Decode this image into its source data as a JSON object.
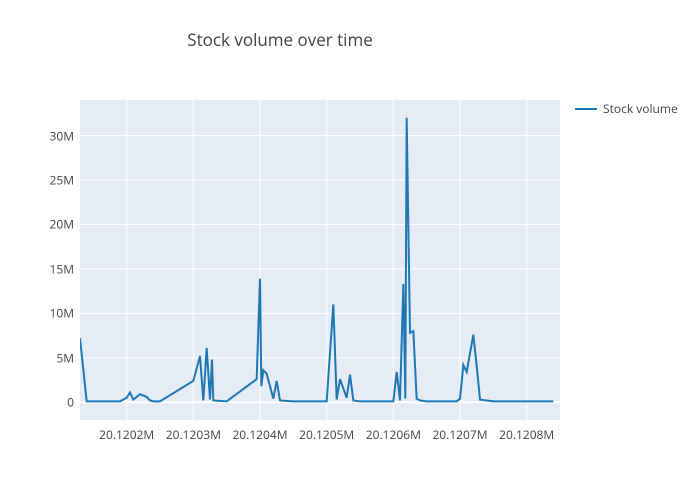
{
  "chart": {
    "type": "line",
    "title": "Stock volume over time",
    "title_fontsize": 17,
    "title_color": "#444444",
    "background_color": "#ffffff",
    "plot_bgcolor": "#e5ecf6",
    "grid_color": "#ffffff",
    "line_color": "#1f77b4",
    "line_width": 2,
    "label_fontsize": 12,
    "label_color": "#444444",
    "xlim": [
      20.12013,
      20.12085
    ],
    "ylim": [
      -2000000,
      34000000
    ],
    "y_ticks": [
      0,
      5000000,
      10000000,
      15000000,
      20000000,
      25000000,
      30000000
    ],
    "y_tick_labels": [
      "0",
      "5M",
      "10M",
      "15M",
      "20M",
      "25M",
      "30M"
    ],
    "x_ticks": [
      20.1202,
      20.1203,
      20.1204,
      20.1205,
      20.1206,
      20.1207,
      20.1208
    ],
    "x_tick_labels": [
      "20.1202M",
      "20.1203M",
      "20.1204M",
      "20.1205M",
      "20.1206M",
      "20.1207M",
      "20.1208M"
    ],
    "legend": {
      "label": "Stock volume",
      "color": "#1f77b4"
    },
    "series": {
      "x": [
        20.12013,
        20.12014,
        20.12019,
        20.1202,
        20.120205,
        20.12021,
        20.12022,
        20.12023,
        20.120235,
        20.12024,
        20.12025,
        20.1203,
        20.12031,
        20.120315,
        20.12032,
        20.120325,
        20.120328,
        20.12033,
        20.12035,
        20.120395,
        20.1204,
        20.120402,
        20.120405,
        20.12041,
        20.12042,
        20.120425,
        20.12043,
        20.12045,
        20.1205,
        20.12051,
        20.120515,
        20.12052,
        20.12053,
        20.120535,
        20.12054,
        20.12055,
        20.1206,
        20.120605,
        20.12061,
        20.120615,
        20.120618,
        20.12062,
        20.120625,
        20.12063,
        20.120635,
        20.12064,
        20.12065,
        20.120695,
        20.1207,
        20.120705,
        20.12071,
        20.12072,
        20.120725,
        20.12073,
        20.12075,
        20.1208,
        20.12084
      ],
      "y": [
        7200000,
        100000,
        100000,
        500000,
        1100000,
        300000,
        900000,
        600000,
        200000,
        100000,
        100000,
        2400000,
        5200000,
        200000,
        6100000,
        300000,
        4800000,
        200000,
        100000,
        2600000,
        13900000,
        1800000,
        3600000,
        3200000,
        400000,
        2400000,
        200000,
        100000,
        100000,
        11000000,
        300000,
        2600000,
        500000,
        3100000,
        200000,
        100000,
        100000,
        3400000,
        200000,
        13300000,
        400000,
        32000000,
        7800000,
        8000000,
        400000,
        200000,
        100000,
        100000,
        400000,
        4200000,
        3400000,
        7600000,
        4100000,
        300000,
        100000,
        100000,
        100000
      ]
    }
  }
}
